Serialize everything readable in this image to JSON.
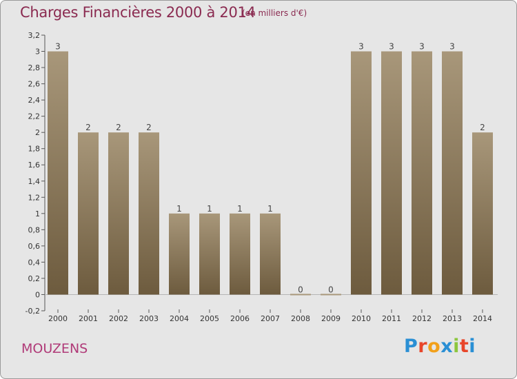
{
  "header": {
    "title": "Charges Financières 2000 à 2014",
    "unit": "(en milliers d'€)"
  },
  "footer": {
    "place": "MOUZENS",
    "brand_letters": [
      "P",
      "r",
      "o",
      "x",
      "i",
      "t",
      "i"
    ]
  },
  "colors": {
    "title": "#8a2a50",
    "place": "#b03a78",
    "bar_top": "#a8977a",
    "bar_bottom": "#6d5b3e",
    "plot_background": "#e6e6e6",
    "brand": [
      "#2a8fd4",
      "#e8462a",
      "#f2a01a",
      "#2a8fd4",
      "#8cc63e",
      "#e8462a",
      "#2a8fd4"
    ]
  },
  "chart_data": {
    "type": "bar",
    "categories": [
      "2000",
      "2001",
      "2002",
      "2003",
      "2004",
      "2005",
      "2006",
      "2007",
      "2008",
      "2009",
      "2010",
      "2011",
      "2012",
      "2013",
      "2014"
    ],
    "values": [
      3,
      2,
      2,
      2,
      1,
      1,
      1,
      1,
      0,
      0,
      3,
      3,
      3,
      3,
      2
    ],
    "data_labels": [
      "3",
      "2",
      "2",
      "2",
      "1",
      "1",
      "1",
      "1",
      "0",
      "0",
      "3",
      "3",
      "3",
      "3",
      "2"
    ],
    "ylim": [
      -0.2,
      3.2
    ],
    "yticks": [
      -0.2,
      0,
      0.2,
      0.4,
      0.6,
      0.8,
      1,
      1.2,
      1.4,
      1.6,
      1.8,
      2,
      2.2,
      2.4,
      2.6,
      2.8,
      3,
      3.2
    ],
    "ytick_labels": [
      "-0,2",
      "0",
      "0,2",
      "0,4",
      "0,6",
      "0,8",
      "1",
      "1,2",
      "1,4",
      "1,6",
      "1,8",
      "2",
      "2,2",
      "2,4",
      "2,6",
      "2,8",
      "3",
      "3,2"
    ],
    "grid": false,
    "legend": "none",
    "xlabel": "",
    "ylabel": ""
  }
}
